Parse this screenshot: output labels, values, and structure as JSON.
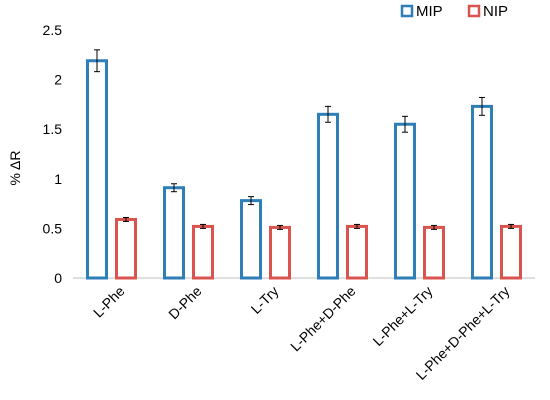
{
  "chart_data": {
    "type": "bar",
    "ylabel": "% ΔR",
    "ylim": [
      0,
      2.5
    ],
    "yticks": [
      "0",
      "0.5",
      "1",
      "1.5",
      "2",
      "2.5"
    ],
    "categories": [
      "L-Phe",
      "D-Phe",
      "L-Try",
      "L-Phe+D-Phe",
      "L-Phe+L-Try",
      "L-Phe+D-Phe+L-Try"
    ],
    "series": [
      {
        "name": "MIP",
        "color": "#2E7EB8",
        "values": [
          2.19,
          0.91,
          0.78,
          1.65,
          1.55,
          1.73
        ],
        "errors": [
          0.11,
          0.04,
          0.04,
          0.08,
          0.08,
          0.09
        ]
      },
      {
        "name": "NIP",
        "color": "#D9534F",
        "values": [
          0.59,
          0.52,
          0.51,
          0.52,
          0.51,
          0.52
        ],
        "errors": [
          0.02,
          0.02,
          0.02,
          0.02,
          0.02,
          0.02
        ]
      }
    ],
    "legend": "top-right",
    "grid": false
  }
}
